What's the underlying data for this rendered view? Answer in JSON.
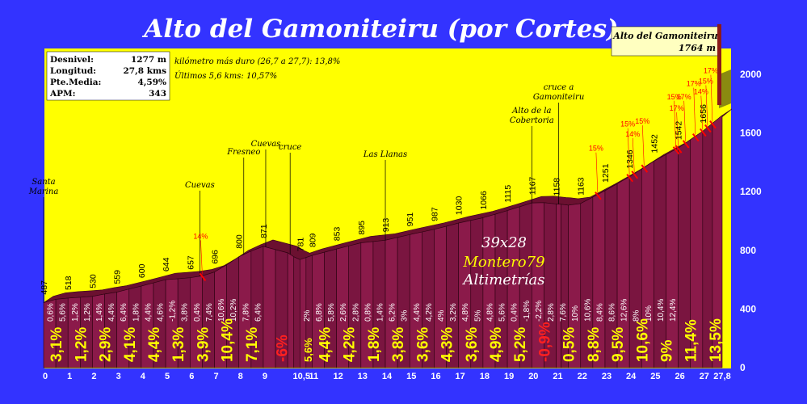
{
  "chart_data": {
    "type": "area",
    "title": "Alto del Gamoniteiru (por Cortes)",
    "stats": [
      {
        "label": "Desnivel:",
        "value": "1277 m"
      },
      {
        "label": "Longitud:",
        "value": "27,8 kms"
      },
      {
        "label": "Pte.Media:",
        "value": "4,59%"
      },
      {
        "label": "APM:",
        "value": "343"
      }
    ],
    "notes": [
      "kilómetro más duro (26,7 a 27,7):  13,8%",
      "Últimos 5,6 kms:  10,57%"
    ],
    "summit": {
      "name": "Alto del Gamoniteiru",
      "altitude": "1764 m"
    },
    "watermark": [
      "39x28",
      "Montero79",
      "Altimetrías"
    ],
    "yticks": [
      0,
      400,
      800,
      1200,
      1600,
      2000
    ],
    "ylim": [
      0,
      2000
    ],
    "xlim": [
      0,
      27.8
    ],
    "xticks": [
      "0",
      "1",
      "2",
      "3",
      "4",
      "5",
      "6",
      "7",
      "8",
      "9",
      "10,5",
      "11",
      "12",
      "13",
      "14",
      "15",
      "16",
      "17",
      "18",
      "19",
      "20",
      "21",
      "22",
      "23",
      "24",
      "25",
      "26",
      "27",
      "27,8"
    ],
    "profile": [
      [
        0,
        487
      ],
      [
        0.5,
        510
      ],
      [
        1,
        518
      ],
      [
        1.5,
        524
      ],
      [
        2,
        530
      ],
      [
        2.5,
        546
      ],
      [
        3,
        559
      ],
      [
        3.5,
        580
      ],
      [
        4,
        600
      ],
      [
        4.5,
        622
      ],
      [
        5,
        644
      ],
      [
        5.5,
        650
      ],
      [
        6,
        657
      ],
      [
        6.5,
        670
      ],
      [
        7,
        696
      ],
      [
        7.5,
        745
      ],
      [
        8,
        800
      ],
      [
        8.5,
        839
      ],
      [
        9,
        871
      ],
      [
        9.5,
        849
      ],
      [
        10,
        827
      ],
      [
        10.25,
        800
      ],
      [
        10.5,
        781
      ],
      [
        10.75,
        795
      ],
      [
        11,
        809
      ],
      [
        11.5,
        831
      ],
      [
        12,
        853
      ],
      [
        12.5,
        874
      ],
      [
        13,
        895
      ],
      [
        13.5,
        904
      ],
      [
        14,
        913
      ],
      [
        14.5,
        932
      ],
      [
        15,
        951
      ],
      [
        15.5,
        969
      ],
      [
        16,
        987
      ],
      [
        16.5,
        1008
      ],
      [
        17,
        1030
      ],
      [
        17.5,
        1048
      ],
      [
        18,
        1066
      ],
      [
        18.5,
        1090
      ],
      [
        19,
        1115
      ],
      [
        19.5,
        1141
      ],
      [
        20,
        1167
      ],
      [
        20.5,
        1169
      ],
      [
        21,
        1160
      ],
      [
        21.2,
        1158
      ],
      [
        21.5,
        1152
      ],
      [
        22,
        1163
      ],
      [
        22.5,
        1207
      ],
      [
        23,
        1251
      ],
      [
        23.5,
        1298
      ],
      [
        24,
        1346
      ],
      [
        24.5,
        1399
      ],
      [
        25,
        1452
      ],
      [
        25.5,
        1497
      ],
      [
        26,
        1542
      ],
      [
        26.5,
        1599
      ],
      [
        27,
        1656
      ],
      [
        27.4,
        1710
      ],
      [
        27.8,
        1764
      ]
    ],
    "altitude_labels": [
      {
        "km": 0,
        "v": "487"
      },
      {
        "km": 1,
        "v": "518"
      },
      {
        "km": 2,
        "v": "530"
      },
      {
        "km": 3,
        "v": "559"
      },
      {
        "km": 4,
        "v": "600"
      },
      {
        "km": 5,
        "v": "644"
      },
      {
        "km": 6,
        "v": "657"
      },
      {
        "km": 7,
        "v": "696"
      },
      {
        "km": 8,
        "v": "800"
      },
      {
        "km": 9,
        "v": "871"
      },
      {
        "km": 10.5,
        "v": "781"
      },
      {
        "km": 11,
        "v": "809"
      },
      {
        "km": 12,
        "v": "853"
      },
      {
        "km": 13,
        "v": "895"
      },
      {
        "km": 14,
        "v": "913"
      },
      {
        "km": 15,
        "v": "951"
      },
      {
        "km": 16,
        "v": "987"
      },
      {
        "km": 17,
        "v": "1030"
      },
      {
        "km": 18,
        "v": "1066"
      },
      {
        "km": 19,
        "v": "1115"
      },
      {
        "km": 20,
        "v": "1167"
      },
      {
        "km": 21,
        "v": "1158"
      },
      {
        "km": 22,
        "v": "1163"
      },
      {
        "km": 23,
        "v": "1251"
      },
      {
        "km": 24,
        "v": "1346"
      },
      {
        "km": 25,
        "v": "1452"
      },
      {
        "km": 26,
        "v": "1542"
      },
      {
        "km": 27,
        "v": "1656"
      }
    ],
    "half_km_grades": [
      "0,6%",
      "5,6%",
      "1,2%",
      "1,2%",
      "1,4%",
      "4,4%",
      "6,4%",
      "1,8%",
      "4,4%",
      "4,6%",
      "-1,2%",
      "3,8%",
      "0,4%",
      "7,4%",
      "10,6%",
      "10,2%",
      "7,8%",
      "6,4%",
      "2%",
      "6,8%",
      "5,8%",
      "2,6%",
      "2,8%",
      "0,8%",
      "1,4%",
      "6,2%",
      "3%",
      "4,4%",
      "4,2%",
      "4%",
      "3,2%",
      "4,8%",
      "5%",
      "4,8%",
      "5,6%",
      "0,4%",
      "-1,8%",
      "-2,2%",
      "2,8%",
      "7,6%",
      "10%",
      "10,6%",
      "8,4%",
      "8,6%",
      "12,6%",
      "8%",
      "10%",
      "10,4%",
      "12,4%"
    ],
    "km_grades": [
      {
        "km": 0,
        "v": "3,1%"
      },
      {
        "km": 1,
        "v": "1,2%"
      },
      {
        "km": 2,
        "v": "2,9%"
      },
      {
        "km": 3,
        "v": "4,1%"
      },
      {
        "km": 4,
        "v": "4,4%"
      },
      {
        "km": 5,
        "v": "1,3%"
      },
      {
        "km": 6,
        "v": "3,9%"
      },
      {
        "km": 7,
        "v": "10,4%"
      },
      {
        "km": 8,
        "v": "7,1%"
      },
      {
        "km": 9,
        "v": "-6%",
        "neg": true
      },
      {
        "km": 10.5,
        "v": "5,6%",
        "small": true
      },
      {
        "km": 11,
        "v": "4,4%"
      },
      {
        "km": 12,
        "v": "4,2%"
      },
      {
        "km": 13,
        "v": "1,8%"
      },
      {
        "km": 14,
        "v": "3,8%"
      },
      {
        "km": 15,
        "v": "3,6%"
      },
      {
        "km": 16,
        "v": "4,3%"
      },
      {
        "km": 17,
        "v": "3,6%"
      },
      {
        "km": 18,
        "v": "4,9%"
      },
      {
        "km": 19,
        "v": "5,2%"
      },
      {
        "km": 20,
        "v": "-0,9%",
        "neg": true
      },
      {
        "km": 21,
        "v": "0,5%"
      },
      {
        "km": 22,
        "v": "8,8%"
      },
      {
        "km": 23,
        "v": "9,5%"
      },
      {
        "km": 24,
        "v": "10,6%"
      },
      {
        "km": 25,
        "v": "9%"
      },
      {
        "km": 26,
        "v": "11,4%"
      },
      {
        "km": 27,
        "v": "13,5%"
      }
    ],
    "places": [
      {
        "name": "Santa",
        "name2": "Marina",
        "km": 0
      },
      {
        "name": "Cuevas",
        "km": 6.4
      },
      {
        "name": "Fresneo",
        "km": 8.2
      },
      {
        "name": "Cuevas",
        "km": 9.1
      },
      {
        "name": "cruce",
        "km": 10.1
      },
      {
        "name": "Las Llanas",
        "km": 14
      },
      {
        "name": "Alto de la",
        "name2": "Cobertoria",
        "km": 20
      },
      {
        "name": "cruce a",
        "name2": "Gamoniteiru",
        "km": 21.1
      }
    ],
    "steep_marks": [
      {
        "km": 6.5,
        "v": "14%"
      },
      {
        "km": 22.7,
        "v": "15%"
      },
      {
        "km": 24.0,
        "v": "15%"
      },
      {
        "km": 24.2,
        "v": "14%"
      },
      {
        "km": 24.6,
        "v": "15%"
      },
      {
        "km": 25.9,
        "v": "15%"
      },
      {
        "km": 26.0,
        "v": "17%"
      },
      {
        "km": 26.3,
        "v": "17%"
      },
      {
        "km": 26.7,
        "v": "17%"
      },
      {
        "km": 27.0,
        "v": "14%"
      },
      {
        "km": 27.2,
        "v": "15%"
      },
      {
        "km": 27.4,
        "v": "17%"
      }
    ]
  }
}
